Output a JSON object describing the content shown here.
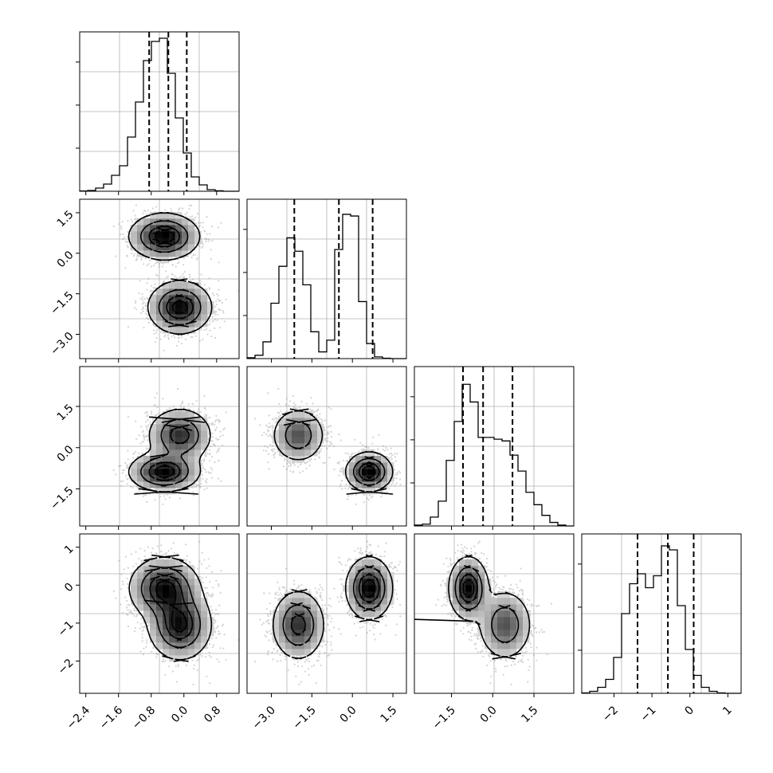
{
  "chart_data": {
    "type": "corner",
    "title": "",
    "grid": true,
    "line_color": "#000000",
    "density_color": "#000000",
    "grid_color": "#b0b0b0",
    "variables": [
      {
        "index": 0,
        "range": [
          -2.55,
          1.35
        ],
        "tick_values": [
          -2.4,
          -1.6,
          -0.8,
          0.0,
          0.8
        ],
        "tick_labels": [
          "−2.4",
          "−1.6",
          "−0.8",
          "0.0",
          "0.8"
        ],
        "quantiles": [
          -0.85,
          -0.38,
          0.07
        ],
        "histogram": {
          "edges_start": -2.55,
          "bin_width": 0.195,
          "counts": [
            0.2,
            0.5,
            2.0,
            4.5,
            10.0,
            16.0,
            34.0,
            56.0,
            82.0,
            94.0,
            96.0,
            74.0,
            46.0,
            24.0,
            9.0,
            4.0,
            1.0,
            0.3,
            0.0,
            0.0
          ],
          "ymax": 100
        }
      },
      {
        "index": 1,
        "range": [
          -3.9,
          2.0
        ],
        "tick_values": [
          -3.0,
          -1.5,
          0.0,
          1.5
        ],
        "tick_labels": [
          "−3.0",
          "−1.5",
          "0.0",
          "1.5"
        ],
        "quantiles": [
          -2.15,
          -0.5,
          0.75
        ],
        "histogram": {
          "edges_start": -3.9,
          "bin_width": 0.295,
          "counts": [
            0.5,
            2.0,
            10.0,
            33.0,
            55.0,
            72.0,
            64.0,
            44.0,
            16.0,
            4.0,
            11.0,
            65.0,
            86.0,
            85.0,
            34.0,
            9.0,
            1.0,
            0.2,
            0.0,
            0.0
          ],
          "ymax": 95
        }
      },
      {
        "index": 2,
        "range": [
          -2.85,
          2.95
        ],
        "tick_values": [
          -1.5,
          0.0,
          1.5
        ],
        "tick_labels": [
          "−1.5",
          "0.0",
          "1.5"
        ],
        "quantiles": [
          -1.08,
          -0.35,
          0.72
        ],
        "histogram": {
          "edges_start": -2.85,
          "bin_width": 0.29,
          "counts": [
            0.5,
            1.0,
            5.0,
            14.0,
            37.0,
            59.0,
            80.0,
            70.0,
            50.0,
            50.0,
            49.0,
            48.0,
            40.0,
            31.0,
            19.0,
            12.0,
            6.0,
            2.0,
            0.5,
            0.0
          ],
          "ymax": 90
        }
      },
      {
        "index": 3,
        "range": [
          -2.85,
          1.35
        ],
        "tick_values": [
          -2,
          -1,
          0,
          1
        ],
        "tick_labels": [
          "−2",
          "−1",
          "0",
          "1"
        ],
        "quantiles": [
          -1.38,
          -0.58,
          0.1
        ],
        "histogram": {
          "edges_start": -2.85,
          "bin_width": 0.21,
          "counts": [
            0.2,
            1.0,
            3.0,
            7.0,
            18.0,
            40.0,
            55.0,
            60.0,
            53.0,
            59.0,
            74.0,
            72.0,
            44.0,
            22.0,
            9.0,
            3.0,
            1.0,
            0.2,
            0.0,
            0.0
          ],
          "ymax": 80
        }
      }
    ],
    "row_tick_values": {
      "1": [
        -3.0,
        -1.5,
        0.0,
        1.5
      ],
      "2": [
        -1.5,
        0.0,
        1.5
      ],
      "3": [
        -2,
        -1,
        0,
        1
      ]
    },
    "row_tick_labels": {
      "1": [
        "−3.0",
        "−1.5",
        "0.0",
        "1.5"
      ],
      "2": [
        "−1.5",
        "0.0",
        "1.5"
      ],
      "3": [
        "−2",
        "−1",
        "0",
        "1"
      ]
    },
    "mixture": {
      "weights": [
        0.5,
        0.5
      ],
      "means": [
        [
          -0.48,
          0.62,
          -0.88,
          -0.08
        ],
        [
          -0.1,
          -2.0,
          0.45,
          -1.05
        ]
      ],
      "sds": [
        [
          0.42,
          0.42,
          0.35,
          0.4
        ],
        [
          0.38,
          0.48,
          0.48,
          0.45
        ]
      ]
    },
    "contour_levels": [
      0.118,
      0.393,
      0.675,
      0.865
    ]
  }
}
